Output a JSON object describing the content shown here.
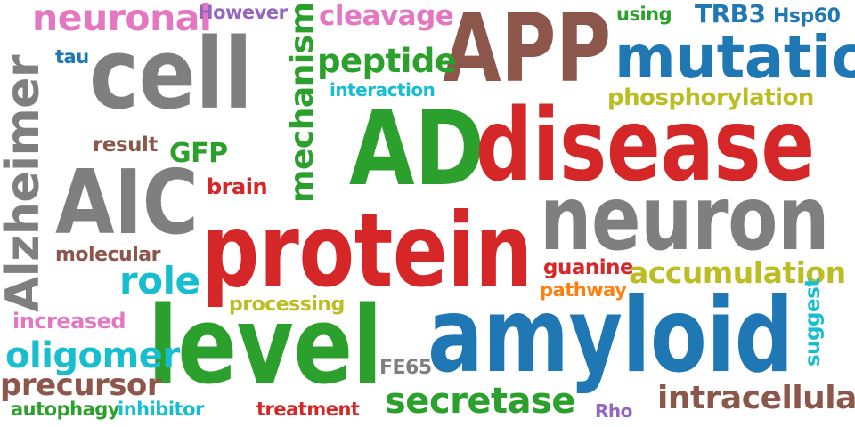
{
  "words": [
    {
      "id": "neuronal",
      "text": "neuronal",
      "color": "#e377c2",
      "rotated": false
    },
    {
      "id": "however",
      "text": "However",
      "color": "#9467bd",
      "rotated": false
    },
    {
      "id": "cleavage",
      "text": "cleavage",
      "color": "#e377c2",
      "rotated": false
    },
    {
      "id": "app",
      "text": "APP",
      "color": "#8c564b",
      "rotated": false
    },
    {
      "id": "using",
      "text": "using",
      "color": "#2ca02c",
      "rotated": false
    },
    {
      "id": "trb3",
      "text": "TRB3",
      "color": "#1f77b4",
      "rotated": false
    },
    {
      "id": "hsp60",
      "text": "Hsp60",
      "color": "#1f77b4",
      "rotated": false
    },
    {
      "id": "tau",
      "text": "tau",
      "color": "#1f77b4",
      "rotated": false
    },
    {
      "id": "cell",
      "text": "cell",
      "color": "#7f7f7f",
      "rotated": false
    },
    {
      "id": "mechanism",
      "text": "mechanism",
      "color": "#2ca02c",
      "rotated": true
    },
    {
      "id": "peptide",
      "text": "peptide",
      "color": "#2ca02c",
      "rotated": false
    },
    {
      "id": "mutation",
      "text": "mutation",
      "color": "#1f77b4",
      "rotated": false
    },
    {
      "id": "interaction",
      "text": "interaction",
      "color": "#17becf",
      "rotated": false
    },
    {
      "id": "phosphorylation",
      "text": "phosphorylation",
      "color": "#bcbd22",
      "rotated": false
    },
    {
      "id": "alzheimer",
      "text": "Alzheimer",
      "color": "#7f7f7f",
      "rotated": true
    },
    {
      "id": "result",
      "text": "result",
      "color": "#8c564b",
      "rotated": false
    },
    {
      "id": "gfp",
      "text": "GFP",
      "color": "#2ca02c",
      "rotated": false
    },
    {
      "id": "ad",
      "text": "AD",
      "color": "#2ca02c",
      "rotated": false
    },
    {
      "id": "disease",
      "text": "disease",
      "color": "#d62728",
      "rotated": false
    },
    {
      "id": "aic",
      "text": "AIC",
      "color": "#7f7f7f",
      "rotated": false
    },
    {
      "id": "brain",
      "text": "brain",
      "color": "#d62728",
      "rotated": false
    },
    {
      "id": "neuron",
      "text": "neuron",
      "color": "#7f7f7f",
      "rotated": false
    },
    {
      "id": "protein",
      "text": "protein",
      "color": "#d62728",
      "rotated": false
    },
    {
      "id": "molecular",
      "text": "molecular",
      "color": "#8c564b",
      "rotated": false
    },
    {
      "id": "role",
      "text": "role",
      "color": "#17becf",
      "rotated": false
    },
    {
      "id": "guanine",
      "text": "guanine",
      "color": "#d62728",
      "rotated": false
    },
    {
      "id": "accumulation",
      "text": "accumulation",
      "color": "#bcbd22",
      "rotated": false
    },
    {
      "id": "pathway",
      "text": "pathway",
      "color": "#ff7f0e",
      "rotated": false
    },
    {
      "id": "processing",
      "text": "processing",
      "color": "#bcbd22",
      "rotated": false
    },
    {
      "id": "increased",
      "text": "increased",
      "color": "#e377c2",
      "rotated": false
    },
    {
      "id": "level",
      "text": "level",
      "color": "#2ca02c",
      "rotated": false
    },
    {
      "id": "amyloid",
      "text": "amyloid",
      "color": "#1f77b4",
      "rotated": false
    },
    {
      "id": "suggest",
      "text": "suggest",
      "color": "#17becf",
      "rotated": true
    },
    {
      "id": "oligomer",
      "text": "oligomer",
      "color": "#17becf",
      "rotated": false
    },
    {
      "id": "fe65",
      "text": "FE65",
      "color": "#7f7f7f",
      "rotated": false
    },
    {
      "id": "precursor",
      "text": "precursor",
      "color": "#8c564b",
      "rotated": false
    },
    {
      "id": "secretase",
      "text": "secretase",
      "color": "#2ca02c",
      "rotated": false
    },
    {
      "id": "intracellular",
      "text": "intracellular",
      "color": "#8c564b",
      "rotated": false
    },
    {
      "id": "autophagy",
      "text": "autophagy",
      "color": "#2ca02c",
      "rotated": false
    },
    {
      "id": "inhibitor",
      "text": "inhibitor",
      "color": "#17becf",
      "rotated": false
    },
    {
      "id": "treatment",
      "text": "treatment",
      "color": "#d62728",
      "rotated": false
    },
    {
      "id": "rho",
      "text": "Rho",
      "color": "#9467bd",
      "rotated": false
    }
  ]
}
